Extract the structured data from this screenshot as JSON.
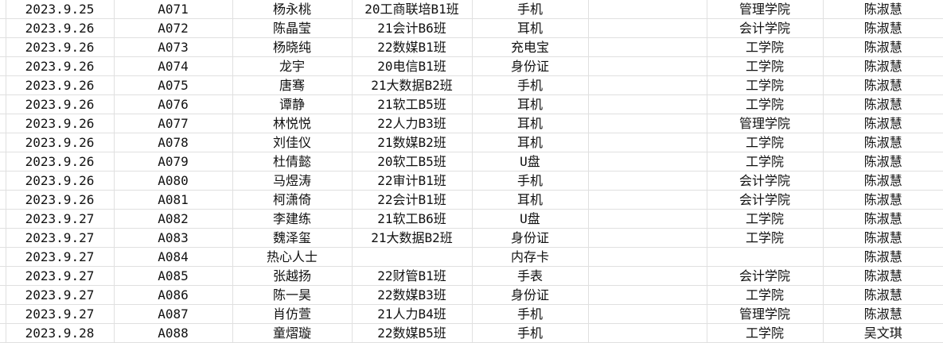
{
  "colors": {
    "grid_line": "#e0e0e0",
    "text": "#111111",
    "background": "#ffffff"
  },
  "table": {
    "columns": [
      "date",
      "id",
      "name",
      "class",
      "item",
      "blank",
      "college",
      "handler"
    ],
    "rows": [
      [
        "2023.9.25",
        "A071",
        "杨永桃",
        "20工商联培B1班",
        "手机",
        "",
        "管理学院",
        "陈淑慧"
      ],
      [
        "2023.9.26",
        "A072",
        "陈晶莹",
        "21会计B6班",
        "耳机",
        "",
        "会计学院",
        "陈淑慧"
      ],
      [
        "2023.9.26",
        "A073",
        "杨晓纯",
        "22数媒B1班",
        "充电宝",
        "",
        "工学院",
        "陈淑慧"
      ],
      [
        "2023.9.26",
        "A074",
        "龙宇",
        "20电信B1班",
        "身份证",
        "",
        "工学院",
        "陈淑慧"
      ],
      [
        "2023.9.26",
        "A075",
        "唐骞",
        "21大数据B2班",
        "手机",
        "",
        "工学院",
        "陈淑慧"
      ],
      [
        "2023.9.26",
        "A076",
        "谭静",
        "21软工B5班",
        "耳机",
        "",
        "工学院",
        "陈淑慧"
      ],
      [
        "2023.9.26",
        "A077",
        "林悦悦",
        "22人力B3班",
        "耳机",
        "",
        "管理学院",
        "陈淑慧"
      ],
      [
        "2023.9.26",
        "A078",
        "刘佳仪",
        "21数媒B2班",
        "耳机",
        "",
        "工学院",
        "陈淑慧"
      ],
      [
        "2023.9.26",
        "A079",
        "杜倩懿",
        "20软工B5班",
        "U盘",
        "",
        "工学院",
        "陈淑慧"
      ],
      [
        "2023.9.26",
        "A080",
        "马煜涛",
        "22审计B1班",
        "手机",
        "",
        "会计学院",
        "陈淑慧"
      ],
      [
        "2023.9.26",
        "A081",
        "柯潇倚",
        "22会计B1班",
        "耳机",
        "",
        "会计学院",
        "陈淑慧"
      ],
      [
        "2023.9.27",
        "A082",
        "李建练",
        "21软工B6班",
        "U盘",
        "",
        "工学院",
        "陈淑慧"
      ],
      [
        "2023.9.27",
        "A083",
        "魏泽玺",
        "21大数据B2班",
        "身份证",
        "",
        "工学院",
        "陈淑慧"
      ],
      [
        "2023.9.27",
        "A084",
        "热心人士",
        "",
        "内存卡",
        "",
        "",
        "陈淑慧"
      ],
      [
        "2023.9.27",
        "A085",
        "张越扬",
        "22财管B1班",
        "手表",
        "",
        "会计学院",
        "陈淑慧"
      ],
      [
        "2023.9.27",
        "A086",
        "陈一昊",
        "22数媒B3班",
        "身份证",
        "",
        "工学院",
        "陈淑慧"
      ],
      [
        "2023.9.27",
        "A087",
        "肖仿萱",
        "21人力B4班",
        "手机",
        "",
        "管理学院",
        "陈淑慧"
      ],
      [
        "2023.9.28",
        "A088",
        "童熠璇",
        "22数媒B5班",
        "手机",
        "",
        "工学院",
        "吴文琪"
      ]
    ]
  }
}
